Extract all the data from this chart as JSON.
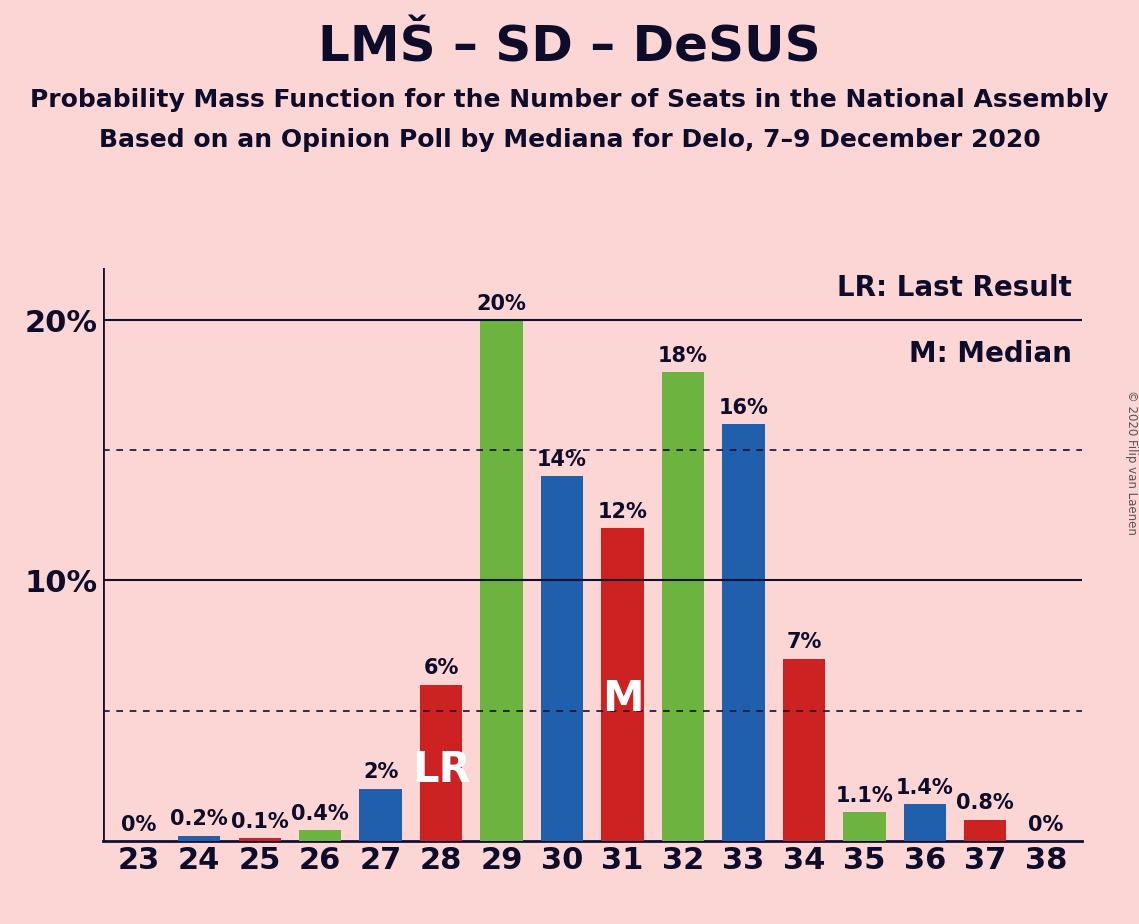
{
  "title": "LMŠ – SD – DeSUS",
  "subtitle1": "Probability Mass Function for the Number of Seats in the National Assembly",
  "subtitle2": "Based on an Opinion Poll by Mediana for Delo, 7–9 December 2020",
  "copyright": "© 2020 Filip van Laenen",
  "legend_lr": "LR: Last Result",
  "legend_m": "M: Median",
  "background_color": "#fcd5d5",
  "seats": [
    23,
    24,
    25,
    26,
    27,
    28,
    29,
    30,
    31,
    32,
    33,
    34,
    35,
    36,
    37,
    38
  ],
  "values": [
    0.0,
    0.2,
    0.1,
    0.4,
    2.0,
    6.0,
    20.0,
    14.0,
    12.0,
    18.0,
    16.0,
    7.0,
    1.1,
    1.4,
    0.8,
    0.0
  ],
  "bar_colors": [
    "#fcd5d5",
    "#1f5fac",
    "#cc2222",
    "#6db33f",
    "#1f5fac",
    "#cc2222",
    "#6db33f",
    "#1f5fac",
    "#cc2222",
    "#6db33f",
    "#1f5fac",
    "#cc2222",
    "#6db33f",
    "#1f5fac",
    "#cc2222",
    "#fcd5d5"
  ],
  "bar_labels": [
    "0%",
    "0.2%",
    "0.1%",
    "0.4%",
    "2%",
    "6%",
    "20%",
    "14%",
    "12%",
    "18%",
    "16%",
    "7%",
    "1.1%",
    "1.4%",
    "0.8%",
    "0%"
  ],
  "blue_color": "#1f5fac",
  "green_color": "#6db33f",
  "red_color": "#cc2222",
  "bar_width": 0.7,
  "ylim_max": 22,
  "yticks": [
    0,
    10,
    20
  ],
  "ytick_labels": [
    "",
    "10%",
    "20%"
  ],
  "solid_hlines": [
    10.0,
    20.0
  ],
  "dotted_hlines": [
    5.0,
    15.0
  ],
  "lr_seat": 28,
  "median_seat": 31,
  "title_fontsize": 36,
  "subtitle_fontsize": 18,
  "axis_tick_fontsize": 22,
  "bar_label_fontsize": 15,
  "legend_fontsize": 20,
  "inside_label_fontsize": 30
}
